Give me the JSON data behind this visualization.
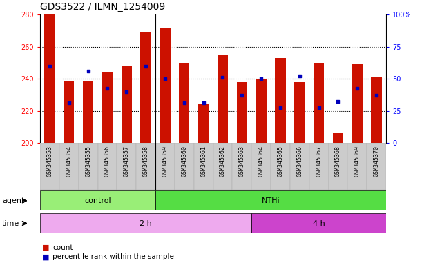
{
  "title": "GDS3522 / ILMN_1254009",
  "samples": [
    "GSM345353",
    "GSM345354",
    "GSM345355",
    "GSM345356",
    "GSM345357",
    "GSM345358",
    "GSM345359",
    "GSM345360",
    "GSM345361",
    "GSM345362",
    "GSM345363",
    "GSM345364",
    "GSM345365",
    "GSM345366",
    "GSM345367",
    "GSM345368",
    "GSM345369",
    "GSM345370"
  ],
  "bar_tops": [
    280,
    239,
    239,
    244,
    248,
    269,
    272,
    250,
    224,
    255,
    238,
    240,
    253,
    238,
    250,
    206,
    249,
    241
  ],
  "bar_bottom": 200,
  "blue_dot_values": [
    248,
    225,
    245,
    234,
    232,
    248,
    240,
    225,
    225,
    241,
    230,
    240,
    222,
    242,
    222,
    226,
    234,
    230
  ],
  "bar_color": "#cc1100",
  "dot_color": "#0000bb",
  "ylim": [
    200,
    280
  ],
  "yticks_left": [
    200,
    220,
    240,
    260,
    280
  ],
  "yticks_right": [
    0,
    25,
    50,
    75,
    100
  ],
  "grid_lines": [
    220,
    240,
    260
  ],
  "agent_groups": [
    {
      "label": "control",
      "start": 0,
      "end": 6,
      "color": "#99ee77"
    },
    {
      "label": "NTHi",
      "start": 6,
      "end": 18,
      "color": "#55dd44"
    }
  ],
  "time_groups": [
    {
      "label": "2 h",
      "start": 0,
      "end": 11,
      "color": "#eeaaee"
    },
    {
      "label": "4 h",
      "start": 11,
      "end": 18,
      "color": "#cc44cc"
    }
  ],
  "agent_label": "agent",
  "time_label": "time",
  "legend_items": [
    {
      "label": "count",
      "color": "#cc1100"
    },
    {
      "label": "percentile rank within the sample",
      "color": "#0000bb"
    }
  ],
  "title_fontsize": 10,
  "bar_width": 0.55,
  "plot_bg": "#ffffff",
  "xtick_bg": "#cccccc"
}
